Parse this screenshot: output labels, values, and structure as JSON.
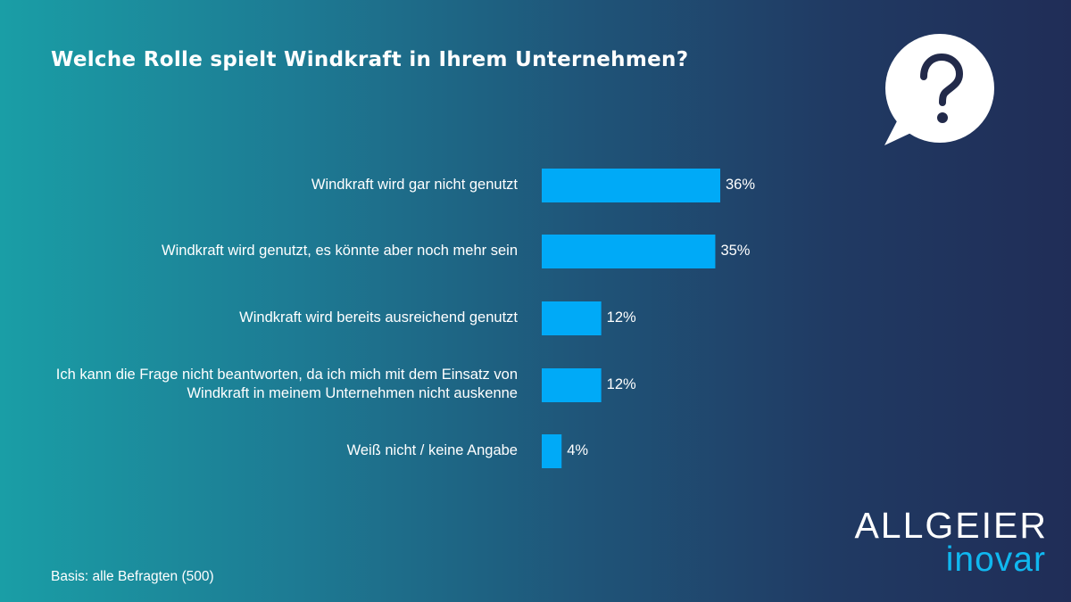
{
  "chart_data": {
    "type": "bar",
    "orientation": "horizontal",
    "title": "Welche Rolle spielt Windkraft in Ihrem Unternehmen?",
    "categories": [
      "Windkraft wird gar nicht genutzt",
      "Windkraft wird genutzt, es könnte aber noch mehr sein",
      "Windkraft wird bereits ausreichend genutzt",
      "Ich kann die Frage nicht beantworten, da ich mich mit dem Einsatz von Windkraft in meinem Unternehmen nicht auskenne",
      "Weiß nicht / keine Angabe"
    ],
    "values": [
      36,
      35,
      12,
      12,
      4
    ],
    "value_labels": [
      "36%",
      "35%",
      "12%",
      "12%",
      "4%"
    ],
    "unit": "%",
    "xlabel": "",
    "ylabel": "",
    "grid": false,
    "bar_color": "#00aaf7"
  },
  "footer": {
    "basis": "Basis: alle Befragten (500)"
  },
  "icons": {
    "question": "question-bubble-icon"
  },
  "logo": {
    "line1": "ALLGEIER",
    "line2": "inovar"
  },
  "colors": {
    "bar": "#00aaf7",
    "logo_accent": "#10b8f0",
    "text": "#ffffff"
  }
}
